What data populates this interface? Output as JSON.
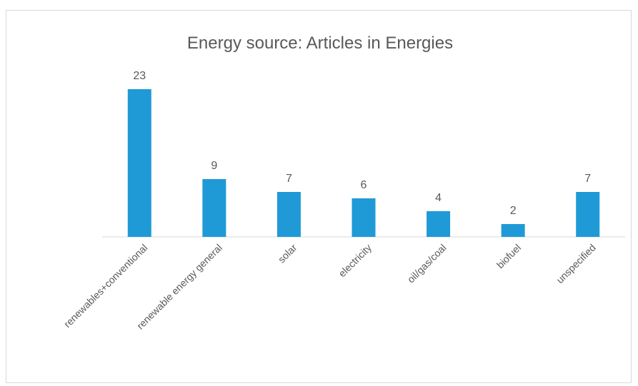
{
  "chart_data": {
    "type": "bar",
    "title": "Energy source: Articles in Energies",
    "categories": [
      "renewables+conventional",
      "renewable energy general",
      "solar",
      "electricity",
      "oil/gas/coal",
      "biofuel",
      "unspecified"
    ],
    "values": [
      23,
      9,
      7,
      6,
      4,
      2,
      7
    ],
    "color": "#1f9ad6"
  }
}
